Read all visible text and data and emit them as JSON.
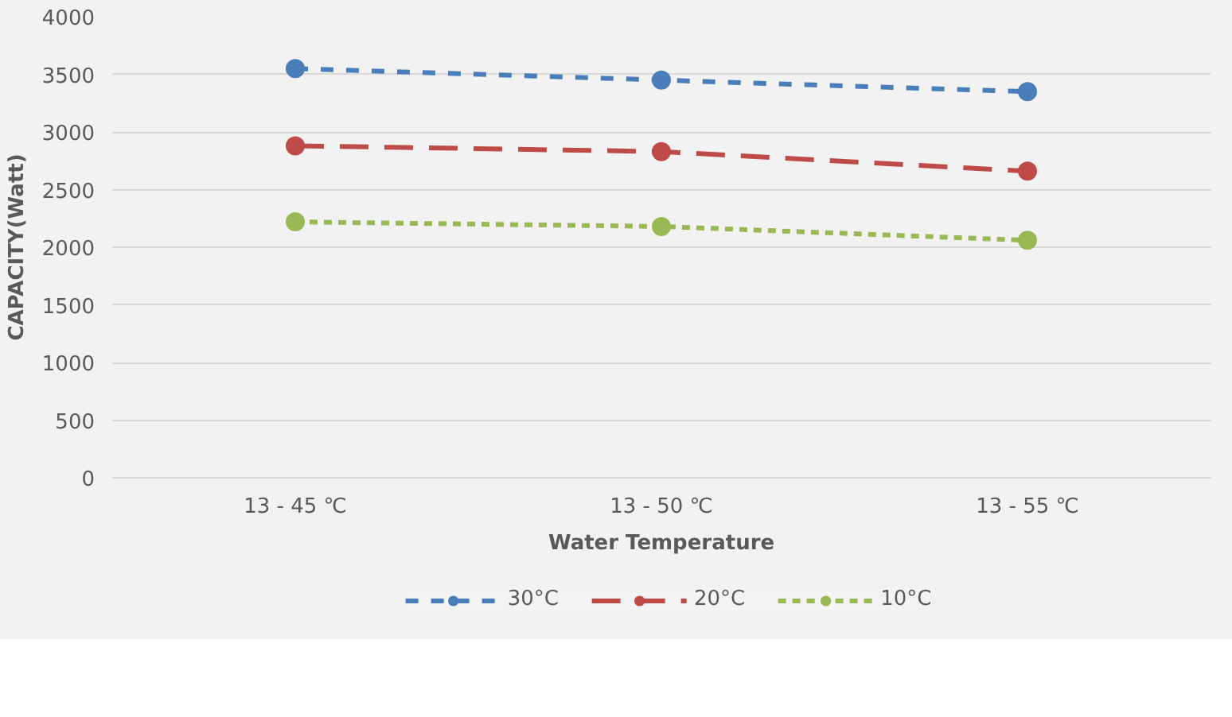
{
  "chart_data": {
    "type": "line",
    "xlabel": "Water Temperature",
    "ylabel": "CAPACITY(Watt)",
    "categories": [
      "13 - 45 ℃",
      "13 - 50 ℃",
      "13 - 55 ℃"
    ],
    "series": [
      {
        "name": "30°C",
        "color": "#4a7ebb",
        "values": [
          3550,
          3450,
          3350
        ],
        "line_style": "dashed"
      },
      {
        "name": "20°C",
        "color": "#be4b48",
        "values": [
          2880,
          2830,
          2660
        ],
        "line_style": "dashed"
      },
      {
        "name": "10°C",
        "color": "#98b954",
        "values": [
          2220,
          2180,
          2060
        ],
        "line_style": "dotted"
      }
    ],
    "ylim": [
      0,
      4000
    ],
    "yticks": [
      0,
      500,
      1000,
      1500,
      2000,
      2500,
      3000,
      3500,
      4000
    ],
    "grid": "y",
    "legend": "bottom",
    "marker": "circle"
  }
}
